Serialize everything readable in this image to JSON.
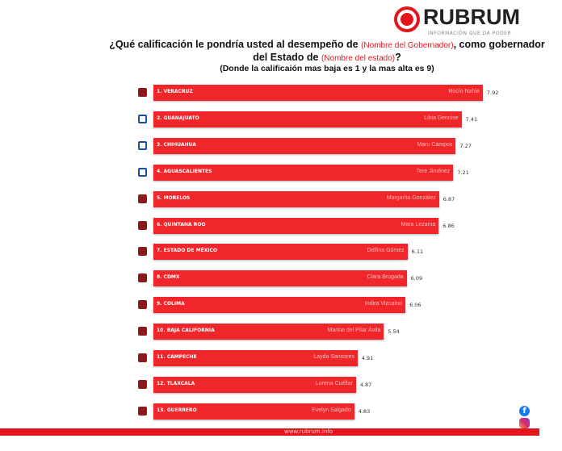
{
  "brand": {
    "name": "RUBRUM",
    "tagline": "INFORMACIÓN QUE DA PODER",
    "accent": "#e3161e"
  },
  "header": {
    "title_part1": "¿Qué calificación le pondría usted al desempeño de ",
    "title_red1": "(Nombre del Gobernador)",
    "title_part2": ", como gobernador del Estado de ",
    "title_red2": "(Nombre del estado)",
    "title_part3": "?",
    "subtitle": "(Donde la calificaión mas baja es 1 y la mas alta es 9)"
  },
  "chart_data": {
    "type": "bar",
    "orientation": "horizontal",
    "bar_color": "#f0262b",
    "categories": [
      "1. VERACRUZ",
      "2. GUANAJUATO",
      "3. CHIHUAHUA",
      "4. AGUASCALIENTES",
      "5. MORELOS",
      "6. QUINTANA ROO",
      "7. ESTADO DE MÉXICO",
      "8. CDMX",
      "9. COLIMA",
      "10. BAJA CALIFORNIA",
      "11. CAMPECHE",
      "12. TLAXCALA",
      "13. GUERRERO"
    ],
    "governors": [
      "Rocío Nahle",
      "Libia Dennise",
      "Maru Campos",
      "Tere Jiménez",
      "Margarita González",
      "Mara Lezama",
      "Delfina Gómez",
      "Clara Brugada",
      "Indira Vizcaíno",
      "Marina del Pilar Ávila",
      "Layda Sansores",
      "Lorena Cuéllar",
      "Evelyn Salgado"
    ],
    "parties": [
      "morena",
      "pan",
      "pan",
      "pan",
      "morena",
      "morena",
      "morena",
      "morena",
      "morena",
      "morena",
      "morena",
      "morena",
      "morena"
    ],
    "values": [
      7.92,
      7.41,
      7.27,
      7.21,
      6.87,
      6.86,
      6.11,
      6.09,
      6.06,
      5.54,
      4.91,
      4.87,
      4.83
    ],
    "value_labels": [
      "7.92",
      "7.41",
      "7.27",
      "7.21",
      "6.87",
      "6.86",
      "6.11",
      "6.09",
      "6.06",
      "5.54",
      "4.91",
      "4.87",
      "4.83"
    ],
    "xlim": [
      0,
      9
    ]
  },
  "footer": {
    "url": "www.rubrum.info"
  },
  "social": {
    "facebook": "facebook-icon",
    "instagram": "instagram-icon"
  }
}
